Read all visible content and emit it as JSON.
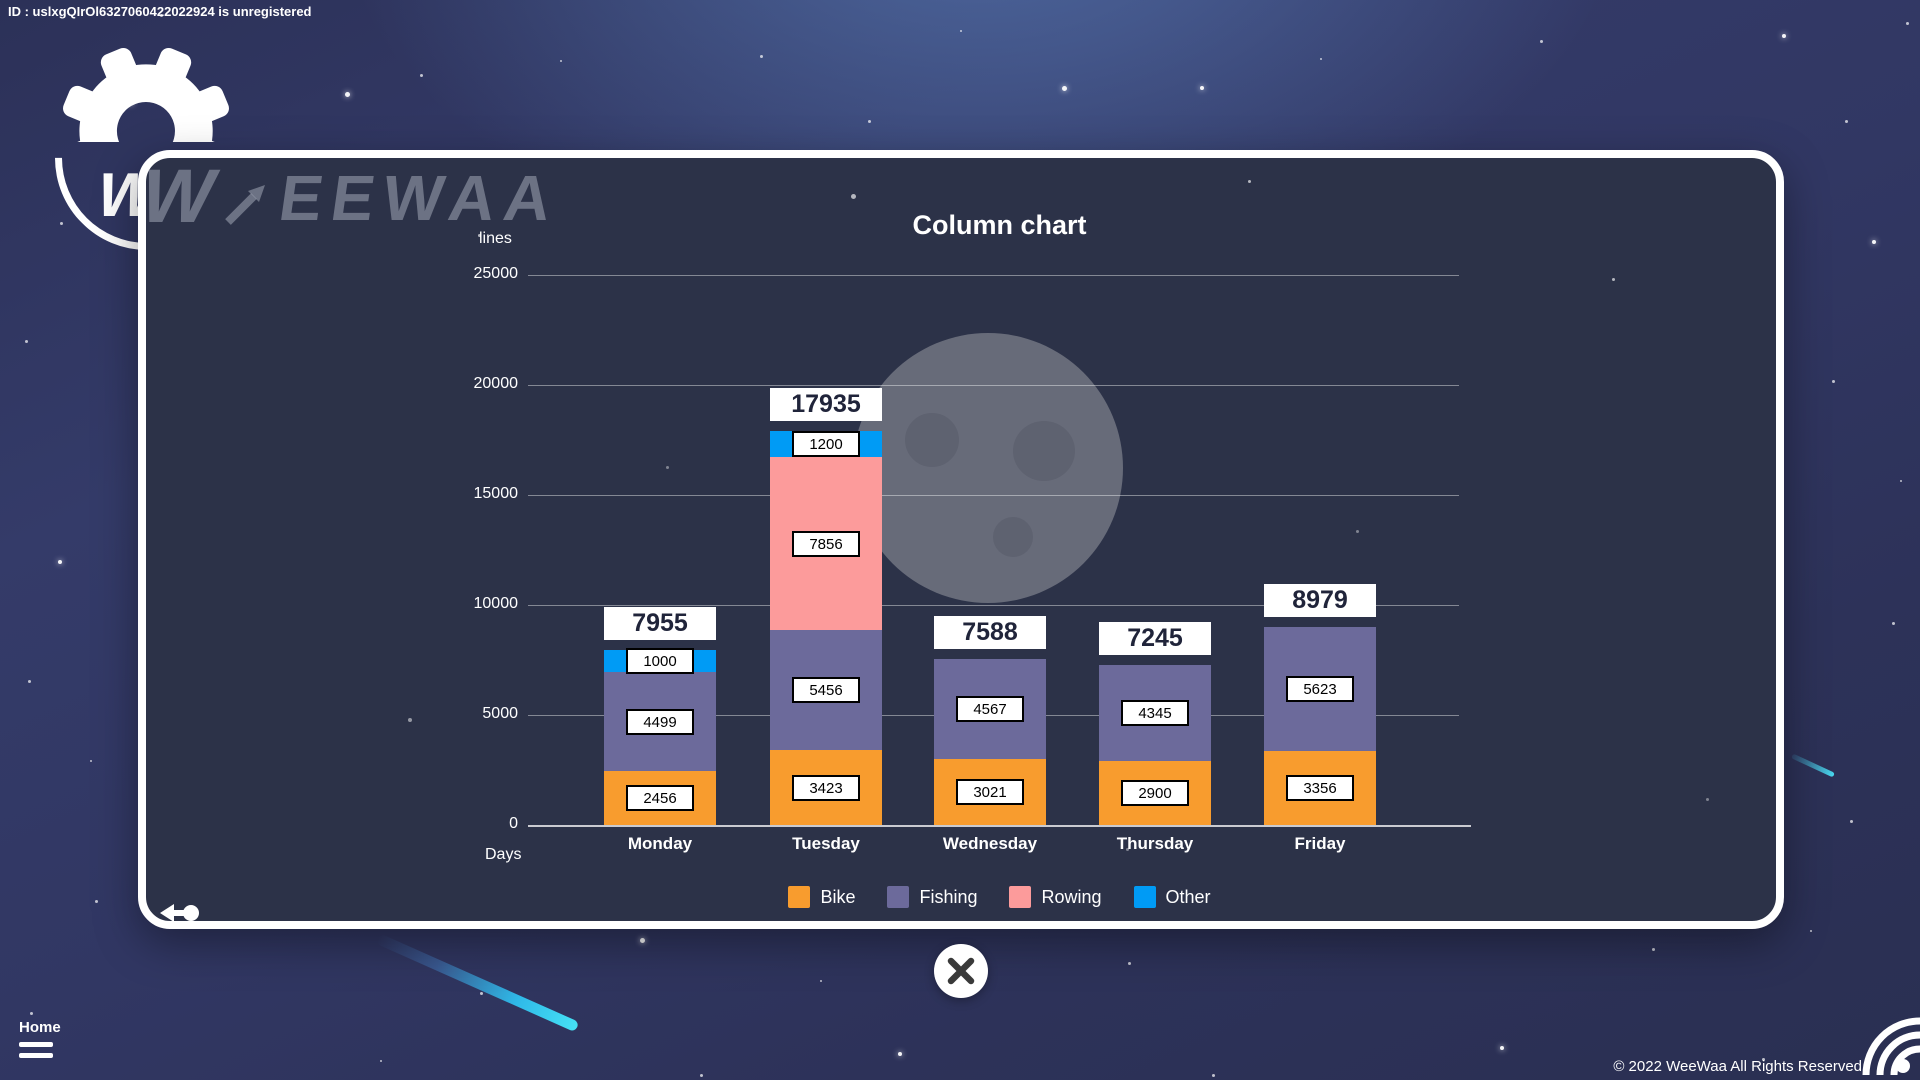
{
  "header": {
    "id_text": "ID : uslxgQIrOl6327060422022924 is unregistered"
  },
  "brand": {
    "emblem_w": "W",
    "logo_w": "W",
    "logo_rest": "EEWAA"
  },
  "icons": {
    "gear": "gear-icon",
    "logo_arrow": "arrow-up-right-icon",
    "back": "back-arrow-icon",
    "close": "close-icon",
    "menu": "hamburger-menu-icon",
    "signal": "signal-arcs-icon"
  },
  "colors": {
    "panel": "#2C3248",
    "accent_cyan": "#46E2F5",
    "bike": "#F89C2E",
    "fishing": "#6C6A9B",
    "rowing": "#FC9B9B",
    "other": "#009BF5"
  },
  "chart_data": {
    "type": "bar",
    "stacked": true,
    "title": "Column chart",
    "ylabel": "lines",
    "xlabel": "Days",
    "ylim": [
      0,
      25000
    ],
    "yticks": [
      0,
      5000,
      10000,
      15000,
      20000,
      25000
    ],
    "grid": true,
    "legend_position": "bottom",
    "categories": [
      "Monday",
      "Tuesday",
      "Wednesday",
      "Thursday",
      "Friday"
    ],
    "series": [
      {
        "name": "Bike",
        "color": "#F89C2E",
        "values": [
          2456,
          3423,
          3021,
          2900,
          3356
        ]
      },
      {
        "name": "Fishing",
        "color": "#6C6A9B",
        "values": [
          4499,
          5456,
          4567,
          4345,
          5623
        ]
      },
      {
        "name": "Rowing",
        "color": "#FC9B9B",
        "values": [
          0,
          7856,
          0,
          0,
          0
        ]
      },
      {
        "name": "Other",
        "color": "#009BF5",
        "values": [
          1000,
          1200,
          0,
          0,
          0
        ]
      }
    ],
    "totals": [
      7955,
      17935,
      7588,
      7245,
      8979
    ]
  },
  "controls": {
    "home_label": "Home"
  },
  "footer": {
    "copyright": "© 2022 WeeWaa All Rights Reserved"
  }
}
